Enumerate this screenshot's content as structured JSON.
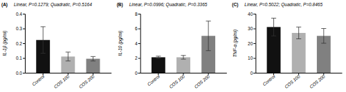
{
  "chart_data": [
    {
      "type": "bar",
      "title": "Linear, P=0.1279; Quadratic, P=0.5164",
      "annotations": [
        "(A)"
      ],
      "ylabel": "IL-1β (pg/ml)",
      "categories": [
        "Control",
        "COS 100",
        "COS 200"
      ],
      "values": [
        0.222,
        0.11,
        0.095
      ],
      "errors": [
        0.09,
        0.03,
        0.015
      ],
      "colors": [
        "#111111",
        "#b0b0b0",
        "#808080"
      ],
      "ylim": [
        0,
        0.4
      ],
      "yticks": [
        {
          "value": 0,
          "label": "0.0"
        },
        0.1,
        0.2,
        0.3,
        0.4
      ]
    },
    {
      "type": "bar",
      "title": "Linear, P=0.0996; Quadratic, P=0.3365",
      "annotations": [
        "(B)"
      ],
      "ylabel": "IL-10 (pg/ml)",
      "categories": [
        "Control",
        "COS 100",
        "COS 200"
      ],
      "values": [
        2.1,
        2.1,
        5.0
      ],
      "errors": [
        0.15,
        0.25,
        2.0
      ],
      "colors": [
        "#111111",
        "#b0b0b0",
        "#808080"
      ],
      "ylim": [
        0,
        8
      ],
      "yticks": [
        0,
        2,
        4,
        6,
        8
      ]
    },
    {
      "type": "bar",
      "title": "Linear, P=0.5022; Quadratic, P=0.8465",
      "annotations": [
        "(C)"
      ],
      "ylabel": "TNF-α (pg/ml)",
      "categories": [
        "Control",
        "COS 100",
        "COS 200"
      ],
      "values": [
        31.0,
        27.0,
        25.0
      ],
      "errors": [
        6.0,
        4.0,
        5.0
      ],
      "colors": [
        "#111111",
        "#b0b0b0",
        "#808080"
      ],
      "ylim": [
        0,
        40
      ],
      "yticks": [
        0,
        10,
        20,
        30,
        40
      ]
    }
  ]
}
